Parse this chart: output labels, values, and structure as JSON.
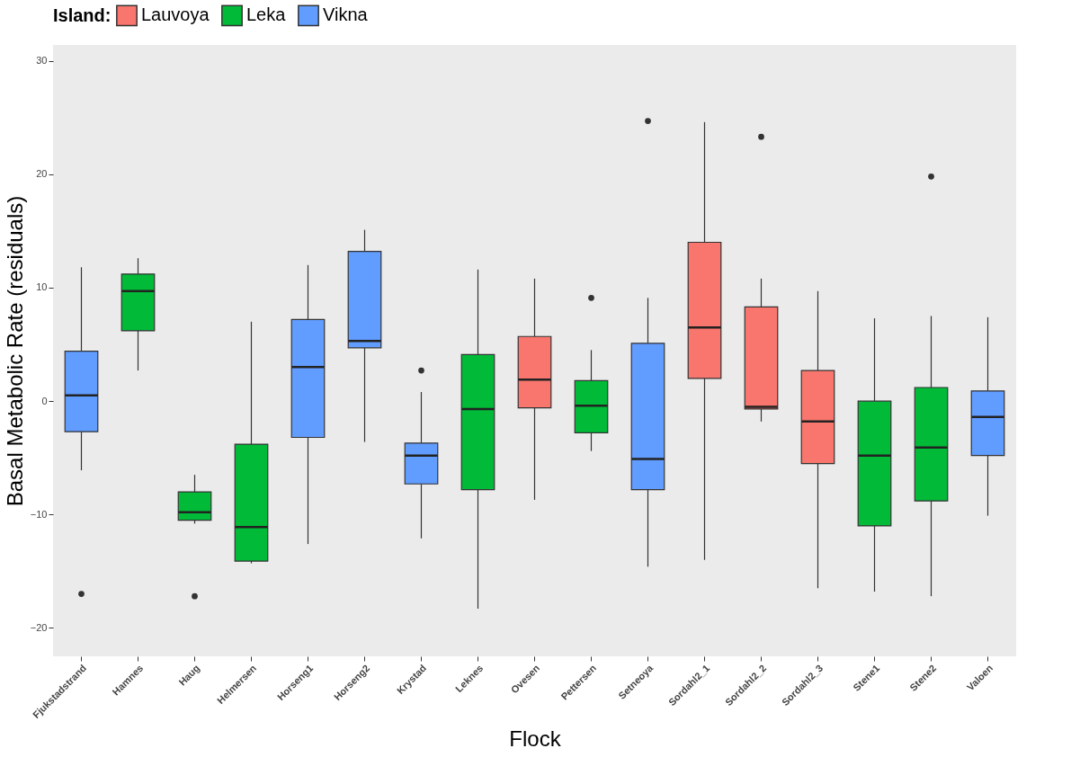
{
  "chart_data": {
    "type": "box",
    "xlabel": "Flock",
    "ylabel": "Basal Metabolic Rate (residuals)",
    "legend_title": "Island:",
    "legend": "top",
    "categories": [
      "Fjukstadstrand",
      "Hamnes",
      "Haug",
      "Helmersen",
      "Horseng1",
      "Horseng2",
      "Krystad",
      "Leknes",
      "Ovesen",
      "Pettersen",
      "Setneoya",
      "Sordahl2_1",
      "Sordahl2_2",
      "Sordahl2_3",
      "Stene1",
      "Stene2",
      "Valoen"
    ],
    "ylim": [
      -22.5,
      31.4
    ],
    "yticks": [
      -20,
      -10,
      0,
      10,
      20,
      30
    ],
    "series": [
      {
        "name": "Lauvoya",
        "color": "#f8766d",
        "boxes": [
          null,
          null,
          null,
          null,
          null,
          null,
          null,
          null,
          {
            "low": -8.7,
            "q1": -0.6,
            "median": 1.9,
            "q3": 5.7,
            "high": 10.8
          },
          null,
          null,
          {
            "low": -14.0,
            "q1": 2.0,
            "median": 6.5,
            "q3": 14.0,
            "high": 24.6
          },
          {
            "low": -1.8,
            "q1": -0.7,
            "median": -0.5,
            "q3": 8.3,
            "high": 10.8,
            "outliers": [
              23.3
            ]
          },
          {
            "low": -16.5,
            "q1": -5.5,
            "median": -1.8,
            "q3": 2.7,
            "high": 9.7
          },
          null,
          null,
          null
        ]
      },
      {
        "name": "Leka",
        "color": "#00ba38",
        "boxes": [
          null,
          {
            "low": 2.7,
            "q1": 6.2,
            "median": 9.7,
            "q3": 11.2,
            "high": 12.6
          },
          {
            "low": -10.8,
            "q1": -10.5,
            "median": -9.8,
            "q3": -8.0,
            "high": -6.5,
            "outliers": [
              -17.2
            ]
          },
          {
            "low": -14.3,
            "q1": -14.1,
            "median": -11.1,
            "q3": -3.8,
            "high": 7.0
          },
          null,
          null,
          null,
          {
            "low": -18.3,
            "q1": -7.8,
            "median": -0.7,
            "q3": 4.1,
            "high": 11.6
          },
          null,
          {
            "low": -4.4,
            "q1": -2.8,
            "median": -0.4,
            "q3": 1.8,
            "high": 4.5,
            "outliers": [
              9.1
            ]
          },
          null,
          null,
          null,
          null,
          {
            "low": -16.8,
            "q1": -11.0,
            "median": -4.8,
            "q3": 0.0,
            "high": 7.3
          },
          {
            "low": -17.2,
            "q1": -8.8,
            "median": -4.1,
            "q3": 1.2,
            "high": 7.5,
            "outliers": [
              19.8
            ]
          },
          null
        ]
      },
      {
        "name": "Vikna",
        "color": "#619cff",
        "boxes": [
          {
            "low": -6.1,
            "q1": -2.7,
            "median": 0.5,
            "q3": 4.4,
            "high": 11.8,
            "outliers": [
              -17.0
            ]
          },
          null,
          null,
          null,
          {
            "low": -12.6,
            "q1": -3.2,
            "median": 3.0,
            "q3": 7.2,
            "high": 12.0
          },
          {
            "low": -3.6,
            "q1": 4.7,
            "median": 5.3,
            "q3": 13.2,
            "high": 15.1
          },
          {
            "low": -12.1,
            "q1": -7.3,
            "median": -4.8,
            "q3": -3.7,
            "high": 0.8,
            "outliers": [
              2.7
            ]
          },
          null,
          null,
          null,
          {
            "low": -14.6,
            "q1": -7.8,
            "median": -5.1,
            "q3": 5.1,
            "high": 9.1,
            "outliers": [
              24.7
            ]
          },
          null,
          null,
          null,
          null,
          null,
          {
            "low": -10.1,
            "q1": -4.8,
            "median": -1.4,
            "q3": 0.9,
            "high": 7.4
          }
        ]
      }
    ]
  }
}
